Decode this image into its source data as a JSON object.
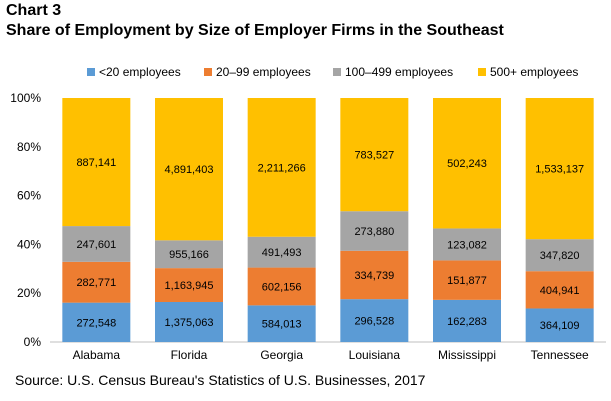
{
  "header": {
    "chart_number": "Chart 3",
    "title": "Share of Employment by Size of Employer Firms in the Southeast"
  },
  "source": "Source: U.S. Census Bureau's Statistics of U.S. Businesses, 2017",
  "colors": {
    "<20 employees": "#5B9BD5",
    "20–99 employees": "#ED7D31",
    "100–499 employees": "#A5A5A5",
    "500+ employees": "#FFC000"
  },
  "chart_data": {
    "type": "bar",
    "stacked": "percent",
    "title": "Share of Employment by Size of Employer Firms in the Southeast",
    "categories": [
      "Alabama",
      "Florida",
      "Georgia",
      "Louisiana",
      "Mississippi",
      "Tennessee"
    ],
    "ylim": [
      0,
      100
    ],
    "yticks": [
      "0%",
      "20%",
      "40%",
      "60%",
      "80%",
      "100%"
    ],
    "legend_position": "top",
    "grid": false,
    "series": [
      {
        "name": "<20 employees",
        "values": [
          272548,
          1375063,
          584013,
          296528,
          162283,
          364109
        ]
      },
      {
        "name": "20–99 employees",
        "values": [
          282771,
          1163945,
          602156,
          334739,
          151877,
          404941
        ]
      },
      {
        "name": "100–499 employees",
        "values": [
          247601,
          955166,
          491493,
          273880,
          123082,
          347820
        ]
      },
      {
        "name": "500+ employees",
        "values": [
          887141,
          4891403,
          2211266,
          783527,
          502243,
          1533137
        ]
      }
    ]
  }
}
